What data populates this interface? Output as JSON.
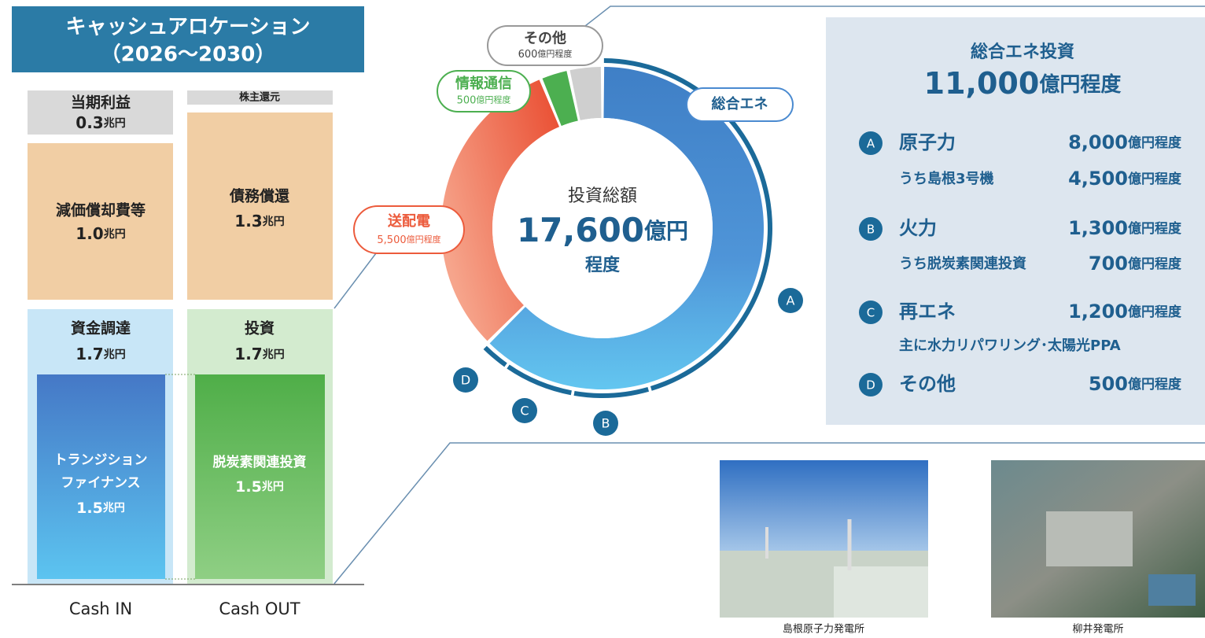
{
  "title": [
    "キャッシュアロケーション",
    "（2026〜2030）"
  ],
  "cash_in": {
    "label": "Cash IN",
    "blocks": [
      {
        "label": "当期利益",
        "amount": "0.3",
        "unit": "兆円"
      },
      {
        "label": "減価償却費等",
        "amount": "1.0",
        "unit": "兆円"
      },
      {
        "label": "資金調達",
        "amount": "1.7",
        "unit": "兆円",
        "inner": {
          "lines": [
            "トランジション",
            "ファイナンス"
          ],
          "amount": "1.5",
          "unit": "兆円"
        }
      }
    ]
  },
  "cash_out": {
    "label": "Cash OUT",
    "blocks": [
      {
        "label": "株主還元"
      },
      {
        "label": "債務償還",
        "amount": "1.3",
        "unit": "兆円"
      },
      {
        "label": "投資",
        "amount": "1.7",
        "unit": "兆円",
        "inner": {
          "lines": [
            "脱炭素関連投資"
          ],
          "amount": "1.5",
          "unit": "兆円"
        }
      }
    ]
  },
  "chart_data": {
    "type": "donut",
    "center": {
      "label": "投資総額",
      "amount": "17,600",
      "unit": "億円",
      "suffix": "程度"
    },
    "segments": [
      {
        "name": "総合エネ",
        "value": 11000,
        "color": "#4a8ad0"
      },
      {
        "name": "送配電",
        "value": 5500,
        "value_label": "5,500",
        "unit": "億円程度",
        "color": "#ec5b3c"
      },
      {
        "name": "情報通信",
        "value": 500,
        "value_label": "500",
        "unit": "億円程度",
        "color": "#4caf50"
      },
      {
        "name": "その他",
        "value": 600,
        "value_label": "600",
        "unit": "億円程度",
        "color": "#cfcfcf"
      }
    ],
    "ring_color": "#1b6a99"
  },
  "panel": {
    "title": "総合エネ投資",
    "amount": "11,000",
    "unit": "億円程度",
    "items": [
      {
        "badge": "A",
        "name": "原子力",
        "value": 8000,
        "value_label": "8,000",
        "unit": "億円程度",
        "sub": {
          "name": "うち島根3号機",
          "value_label": "4,500",
          "unit": "億円程度"
        }
      },
      {
        "badge": "B",
        "name": "火力",
        "value": 1300,
        "value_label": "1,300",
        "unit": "億円程度",
        "sub": {
          "name": "うち脱炭素関連投資",
          "value_label": "700",
          "unit": "億円程度"
        }
      },
      {
        "badge": "C",
        "name": "再エネ",
        "value": 1200,
        "value_label": "1,200",
        "unit": "億円程度",
        "sub": {
          "name": "主に水力リパワリング･太陽光PPA"
        }
      },
      {
        "badge": "D",
        "name": "その他",
        "value": 500,
        "value_label": "500",
        "unit": "億円程度"
      }
    ]
  },
  "photos": [
    {
      "caption": "島根原子力発電所"
    },
    {
      "caption": "柳井発電所"
    }
  ]
}
